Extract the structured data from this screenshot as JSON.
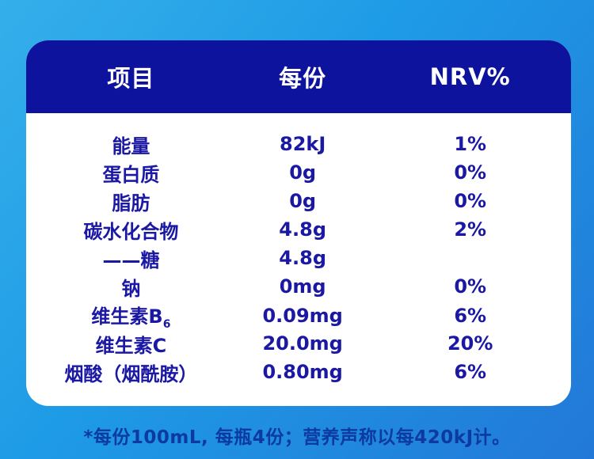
{
  "table": {
    "header": {
      "item_label": "项目",
      "per_serving_label": "每份",
      "nrv_label": "NRV%"
    },
    "rows": [
      {
        "name": "能量",
        "name_subscript": "",
        "per_serving": "82kJ",
        "nrv": "1%"
      },
      {
        "name": "蛋白质",
        "name_subscript": "",
        "per_serving": "0g",
        "nrv": "0%"
      },
      {
        "name": "脂肪",
        "name_subscript": "",
        "per_serving": "0g",
        "nrv": "0%"
      },
      {
        "name": "碳水化合物",
        "name_subscript": "",
        "per_serving": "4.8g",
        "nrv": "2%"
      },
      {
        "name": "——糖",
        "name_subscript": "",
        "per_serving": "4.8g",
        "nrv": ""
      },
      {
        "name": "钠",
        "name_subscript": "",
        "per_serving": "0mg",
        "nrv": "0%"
      },
      {
        "name": "维生素B",
        "name_subscript": "6",
        "per_serving": "0.09mg",
        "nrv": "6%"
      },
      {
        "name": "维生素C",
        "name_subscript": "",
        "per_serving": "20.0mg",
        "nrv": "20%"
      },
      {
        "name": "烟酸（烟酰胺）",
        "name_subscript": "",
        "per_serving": "0.80mg",
        "nrv": "6%"
      }
    ]
  },
  "footnote": {
    "text": "*每份100mL, 每瓶4份；营养声称以每420kJ计。"
  },
  "colors": {
    "header_background": "#0D139C",
    "header_text": "#FFFFFF",
    "body_text": "#1B18A3",
    "footnote_text": "#0C3AA0",
    "card_background": "#FFFFFF",
    "page_gradient_start": "#35AFEA",
    "page_gradient_end": "#2278D8"
  }
}
